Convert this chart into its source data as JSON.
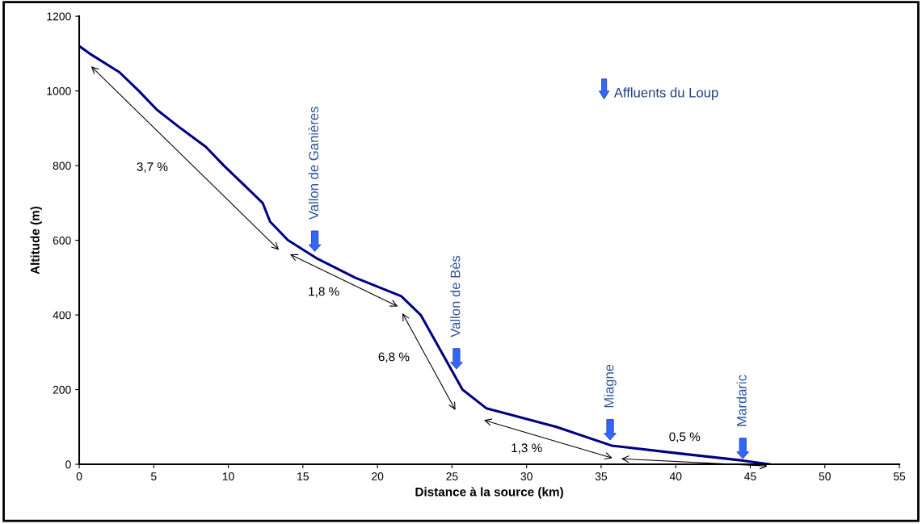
{
  "chart_data": {
    "type": "line",
    "xlabel": "Distance à la source (km)",
    "ylabel": "Altitude (m)",
    "series": [
      {
        "color": "#000080",
        "x": [
          0,
          0.7,
          2.7,
          4,
          5.2,
          6.8,
          8.5,
          9.7,
          11,
          12.3,
          12.8,
          14,
          16,
          18.5,
          21.6,
          22.9,
          24.3,
          25.7,
          27.3,
          32,
          35.7,
          40,
          44.5,
          46.3
        ],
        "values": [
          1120,
          1100,
          1050,
          1000,
          950,
          900,
          850,
          800,
          750,
          700,
          650,
          600,
          550,
          500,
          450,
          400,
          300,
          200,
          150,
          100,
          50,
          30,
          10,
          0
        ]
      }
    ],
    "xlim": [
      0,
      55
    ],
    "xticks": [
      0,
      5,
      10,
      15,
      20,
      25,
      30,
      35,
      40,
      45,
      50,
      55
    ],
    "ylim": [
      0,
      1200
    ],
    "yticks": [
      0,
      200,
      400,
      600,
      800,
      1000,
      1200
    ],
    "grid": false,
    "legend": false,
    "marker": "none",
    "line_style": "solid",
    "annotations": [
      {
        "text": "Vallon de Ganières",
        "x": 15.8,
        "y": 570
      },
      {
        "text": "Vallon de Bès",
        "x": 25.3,
        "y": 255
      },
      {
        "text": "Miagne",
        "x": 35.6,
        "y": 65
      },
      {
        "text": "Mardaric",
        "x": 44.5,
        "y": 15
      },
      "Affluents du Loup",
      "3,7 %",
      "1,8 %",
      "6,8 %",
      "1,3 %",
      "0,5 %"
    ]
  }
}
